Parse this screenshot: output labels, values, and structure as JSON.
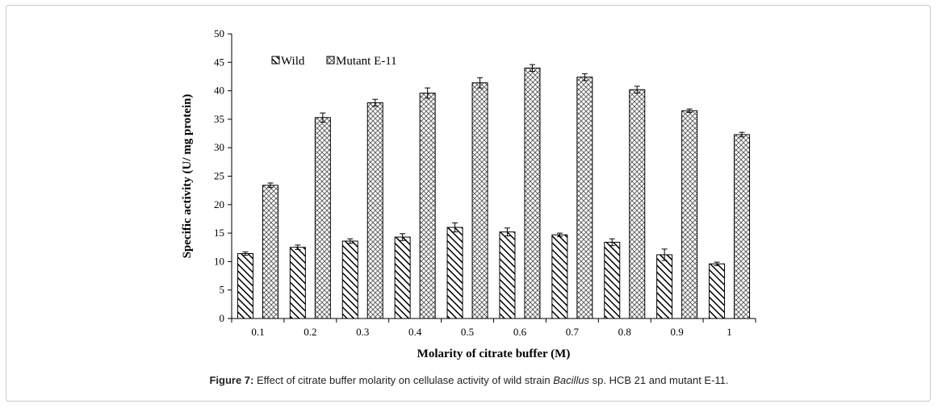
{
  "caption": {
    "label": "Figure 7:",
    "text_before": " Effect of citrate buffer molarity on cellulase activity of wild strain ",
    "italic": "Bacillus",
    "text_after": " sp. HCB 21 and mutant E-11."
  },
  "chart_data": {
    "type": "bar",
    "title": "",
    "xlabel": "Molarity of citrate buffer (M)",
    "ylabel": "Specific activity (U/ mg protein)",
    "ylim": [
      0,
      50
    ],
    "yticks": [
      "0",
      "5",
      "10",
      "15",
      "20",
      "25",
      "30",
      "35",
      "40",
      "45",
      "50"
    ],
    "categories": [
      "0.1",
      "0.2",
      "0.3",
      "0.4",
      "0.5",
      "0.6",
      "0.7",
      "0.8",
      "0.9",
      "1"
    ],
    "legend_position": "top-left",
    "grid": false,
    "series": [
      {
        "name": "Wild",
        "pattern": "diagonal-hatch",
        "values": [
          11.4,
          12.5,
          13.6,
          14.3,
          16.0,
          15.2,
          14.7,
          13.4,
          11.2,
          9.6
        ],
        "errors": [
          0.3,
          0.4,
          0.4,
          0.6,
          0.8,
          0.7,
          0.3,
          0.6,
          1.0,
          0.3
        ]
      },
      {
        "name": "Mutant E-11",
        "pattern": "crosshatch",
        "values": [
          23.4,
          35.3,
          37.9,
          39.6,
          41.4,
          44.0,
          42.4,
          40.2,
          36.5,
          32.3
        ],
        "errors": [
          0.4,
          0.8,
          0.6,
          0.9,
          0.9,
          0.6,
          0.6,
          0.6,
          0.3,
          0.4
        ]
      }
    ]
  }
}
